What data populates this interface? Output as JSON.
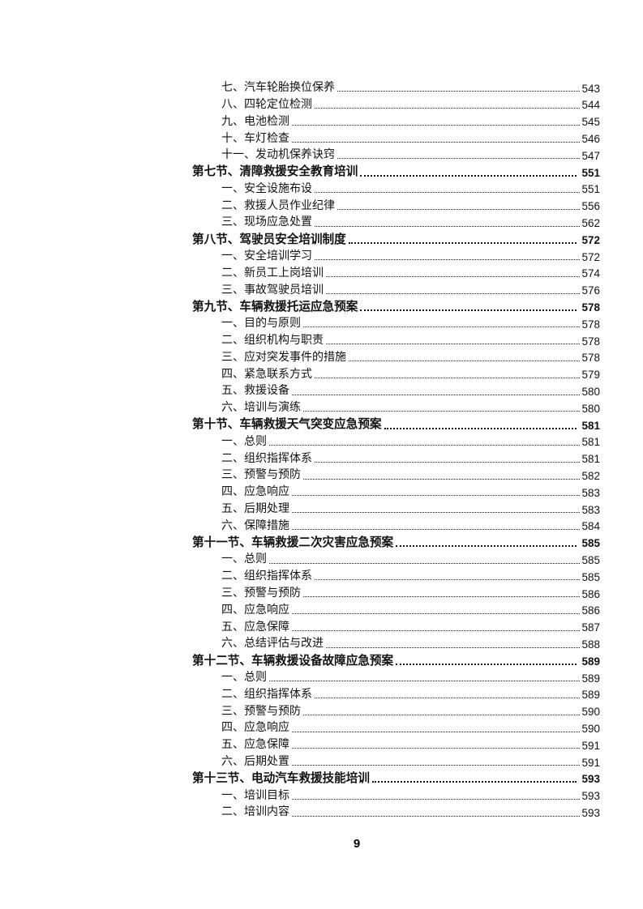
{
  "document": {
    "kind": "table-of-contents-page",
    "text_color": "#111111",
    "background_color": "#ffffff"
  },
  "footer": {
    "page_number": "9"
  },
  "toc": {
    "entries": [
      {
        "level": 2,
        "bold": false,
        "title": "七、汽车轮胎换位保养",
        "page": "543"
      },
      {
        "level": 2,
        "bold": false,
        "title": "八、四轮定位检测",
        "page": "544"
      },
      {
        "level": 2,
        "bold": false,
        "title": "九、电池检测",
        "page": "545"
      },
      {
        "level": 2,
        "bold": false,
        "title": "十、车灯检查",
        "page": "546"
      },
      {
        "level": 2,
        "bold": false,
        "title": "十一、发动机保养诀窍",
        "page": "547"
      },
      {
        "level": 1,
        "bold": true,
        "title": "第七节、清障救援安全教育培训",
        "page": "551"
      },
      {
        "level": 2,
        "bold": false,
        "title": "一、安全设施布设",
        "page": "551"
      },
      {
        "level": 2,
        "bold": false,
        "title": "二、救援人员作业纪律",
        "page": "556"
      },
      {
        "level": 2,
        "bold": false,
        "title": "三、现场应急处置",
        "page": "562"
      },
      {
        "level": 1,
        "bold": true,
        "title": "第八节、驾驶员安全培训制度",
        "page": "572"
      },
      {
        "level": 2,
        "bold": false,
        "title": "一、安全培训学习",
        "page": "572"
      },
      {
        "level": 2,
        "bold": false,
        "title": "二、新员工上岗培训",
        "page": "574"
      },
      {
        "level": 2,
        "bold": false,
        "title": "三、事故驾驶员培训",
        "page": "576"
      },
      {
        "level": 1,
        "bold": true,
        "title": "第九节、车辆救援托运应急预案",
        "page": "578"
      },
      {
        "level": 2,
        "bold": false,
        "title": "一、目的与原则",
        "page": "578"
      },
      {
        "level": 2,
        "bold": false,
        "title": "二、组织机构与职责",
        "page": "578"
      },
      {
        "level": 2,
        "bold": false,
        "title": "三、应对突发事件的措施",
        "page": "578"
      },
      {
        "level": 2,
        "bold": false,
        "title": "四、紧急联系方式",
        "page": "579"
      },
      {
        "level": 2,
        "bold": false,
        "title": "五、救援设备",
        "page": "580"
      },
      {
        "level": 2,
        "bold": false,
        "title": "六、培训与演练",
        "page": "580"
      },
      {
        "level": 1,
        "bold": true,
        "title": "第十节、车辆救援天气突变应急预案",
        "page": "581"
      },
      {
        "level": 2,
        "bold": false,
        "title": "一、总则",
        "page": "581"
      },
      {
        "level": 2,
        "bold": false,
        "title": "二、组织指挥体系",
        "page": "581"
      },
      {
        "level": 2,
        "bold": false,
        "title": "三、预警与预防",
        "page": "582"
      },
      {
        "level": 2,
        "bold": false,
        "title": "四、应急响应",
        "page": "583"
      },
      {
        "level": 2,
        "bold": false,
        "title": "五、后期处理",
        "page": "583"
      },
      {
        "level": 2,
        "bold": false,
        "title": "六、保障措施",
        "page": "584"
      },
      {
        "level": 1,
        "bold": true,
        "title": "第十一节、车辆救援二次灾害应急预案",
        "page": "585"
      },
      {
        "level": 2,
        "bold": false,
        "title": "一、总则",
        "page": "585"
      },
      {
        "level": 2,
        "bold": false,
        "title": "二、组织指挥体系",
        "page": "585"
      },
      {
        "level": 2,
        "bold": false,
        "title": "三、预警与预防",
        "page": "586"
      },
      {
        "level": 2,
        "bold": false,
        "title": "四、应急响应",
        "page": "586"
      },
      {
        "level": 2,
        "bold": false,
        "title": "五、应急保障",
        "page": "587"
      },
      {
        "level": 2,
        "bold": false,
        "title": "六、总结评估与改进",
        "page": "588"
      },
      {
        "level": 1,
        "bold": true,
        "title": "第十二节、车辆救援设备故障应急预案",
        "page": "589"
      },
      {
        "level": 2,
        "bold": false,
        "title": "一、总则",
        "page": "589"
      },
      {
        "level": 2,
        "bold": false,
        "title": "二、组织指挥体系",
        "page": "589"
      },
      {
        "level": 2,
        "bold": false,
        "title": "三、预警与预防",
        "page": "590"
      },
      {
        "level": 2,
        "bold": false,
        "title": "四、应急响应",
        "page": "590"
      },
      {
        "level": 2,
        "bold": false,
        "title": "五、应急保障",
        "page": "591"
      },
      {
        "level": 2,
        "bold": false,
        "title": "六、后期处置",
        "page": "591"
      },
      {
        "level": 1,
        "bold": true,
        "title": "第十三节、电动汽车救援技能培训",
        "page": "593"
      },
      {
        "level": 2,
        "bold": false,
        "title": "一、培训目标",
        "page": "593"
      },
      {
        "level": 2,
        "bold": false,
        "title": "二、培训内容",
        "page": "593"
      }
    ]
  }
}
